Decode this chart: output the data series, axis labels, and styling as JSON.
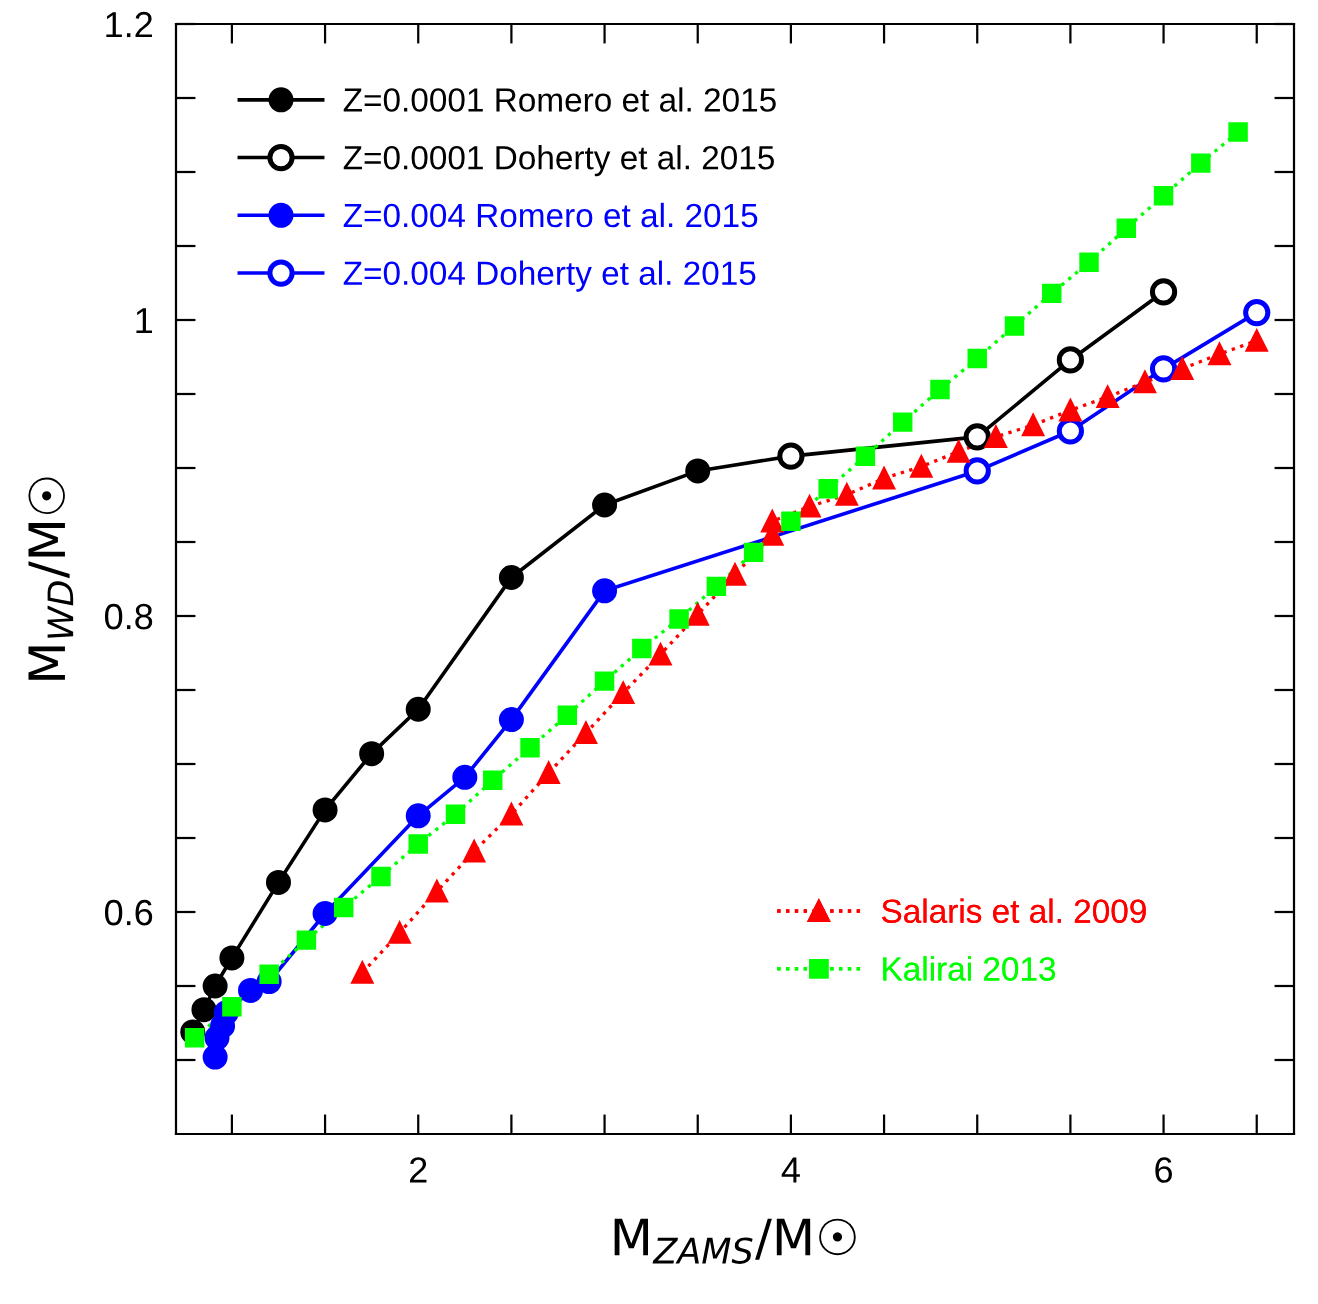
{
  "chart_data": {
    "type": "line",
    "xlabel": "M$_{ZAMS}$/M☉",
    "ylabel": "M$_{WD}$/M☉",
    "xlim": [
      0.7,
      6.7
    ],
    "ylim": [
      0.45,
      1.2
    ],
    "xticks": [
      {
        "value": 1,
        "label": null
      },
      {
        "value": 1.5,
        "label": null
      },
      2,
      {
        "value": 2.5,
        "label": null
      },
      {
        "value": 3,
        "label": null
      },
      {
        "value": 3.5,
        "label": null
      },
      4,
      {
        "value": 4.5,
        "label": null
      },
      {
        "value": 5,
        "label": null
      },
      {
        "value": 5.5,
        "label": null
      },
      6,
      {
        "value": 6.5,
        "label": null
      }
    ],
    "yticks": [
      {
        "value": 0.5,
        "label": null
      },
      {
        "value": 0.55,
        "label": null
      },
      0.6,
      {
        "value": 0.65,
        "label": null
      },
      {
        "value": 0.7,
        "label": null
      },
      {
        "value": 0.75,
        "label": null
      },
      0.8,
      {
        "value": 0.85,
        "label": null
      },
      {
        "value": 0.9,
        "label": null
      },
      {
        "value": 0.95,
        "label": null
      },
      1,
      {
        "value": 1.05,
        "label": null
      },
      {
        "value": 1.1,
        "label": null
      },
      {
        "value": 1.15,
        "label": null
      },
      1.2
    ],
    "grid": false,
    "legend": "top left",
    "series": [
      {
        "name": "Z=0.0001 Romero et al. 2015",
        "color": "#000000",
        "marker": "circle",
        "line_style": "solid",
        "x": [
          0.79,
          0.85,
          0.91,
          1.0,
          1.25,
          1.5,
          1.75,
          2.0,
          2.5,
          3.0,
          3.5
        ],
        "values": [
          0.519,
          0.534,
          0.55,
          0.569,
          0.62,
          0.669,
          0.707,
          0.737,
          0.826,
          0.875,
          0.898
        ]
      },
      {
        "name": "Z=0.0001 Doherty et al. 2015",
        "color": "#000000",
        "marker": "circle-open",
        "line_style": "solid",
        "x": [
          4,
          5,
          5.5,
          6
        ],
        "values": [
          0.908,
          0.921,
          0.973,
          1.019
        ]
      },
      {
        "color": "#000000",
        "marker": "none",
        "line_style": "solid",
        "x": [
          3.5,
          4
        ],
        "values": [
          0.898,
          0.908
        ]
      },
      {
        "name": "Z=0.004 Romero et al. 2015",
        "color": "#0000ff",
        "marker": "circle",
        "line_style": "solid",
        "x": [
          0.91,
          0.92,
          0.95,
          0.97,
          1.1,
          1.2,
          1.5,
          2.0,
          2.25,
          2.5,
          3.0
        ],
        "values": [
          0.502,
          0.515,
          0.523,
          0.532,
          0.547,
          0.553,
          0.599,
          0.665,
          0.691,
          0.73,
          0.817
        ]
      },
      {
        "name": "Z=0.004 Doherty et al. 2015",
        "color": "#0000ff",
        "marker": "circle-open",
        "line_style": "solid",
        "x": [
          5,
          5.5,
          6,
          6.5
        ],
        "values": [
          0.898,
          0.925,
          0.967,
          1.005
        ]
      },
      {
        "color": "#0000ff",
        "marker": "none",
        "line_style": "solid",
        "x": [
          3.0,
          5
        ],
        "values": [
          0.817,
          0.898
        ]
      },
      {
        "name": "Salaris et al. 2009",
        "color": "#ff0000",
        "marker": "triangle",
        "line_style": "dotted",
        "x": [
          1.7,
          1.9,
          2.1,
          2.3,
          2.5,
          2.7,
          2.9,
          3.1,
          3.3,
          3.5,
          3.7,
          3.9,
          3.9,
          4.1,
          4.3,
          4.5,
          4.7,
          4.9,
          5.1,
          5.3,
          5.5,
          5.7,
          5.9,
          6.1,
          6.3,
          6.5
        ],
        "values": [
          0.559,
          0.586,
          0.614,
          0.641,
          0.666,
          0.694,
          0.721,
          0.748,
          0.774,
          0.801,
          0.828,
          0.855,
          0.864,
          0.874,
          0.882,
          0.893,
          0.901,
          0.911,
          0.921,
          0.929,
          0.939,
          0.948,
          0.958,
          0.967,
          0.977,
          0.986
        ]
      },
      {
        "name": "Kalirai 2013",
        "color": "#00ff00",
        "marker": "square",
        "line_style": "dotted",
        "x": [
          0.8,
          1.0,
          1.2,
          1.4,
          1.6,
          1.8,
          2.0,
          2.2,
          2.4,
          2.6,
          2.8,
          3.0,
          3.2,
          3.4,
          3.6,
          3.8,
          4.0,
          4.2,
          4.4,
          4.6,
          4.8,
          5.0,
          5.2,
          5.4,
          5.6,
          5.8,
          6.0,
          6.2,
          6.4
        ],
        "values": [
          0.515,
          0.536,
          0.558,
          0.581,
          0.603,
          0.624,
          0.646,
          0.666,
          0.689,
          0.711,
          0.733,
          0.756,
          0.778,
          0.798,
          0.82,
          0.843,
          0.864,
          0.886,
          0.908,
          0.931,
          0.953,
          0.974,
          0.996,
          1.018,
          1.039,
          1.062,
          1.084,
          1.106,
          1.127
        ]
      }
    ]
  }
}
